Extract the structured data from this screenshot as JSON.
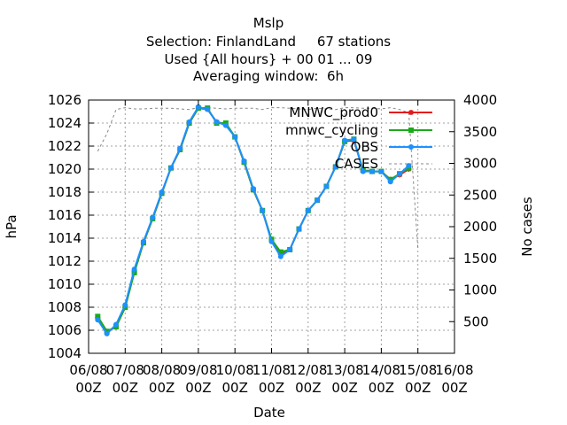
{
  "chart_data": {
    "type": "line",
    "title_lines": [
      "Mslp",
      "Selection: FinlandLand     67 stations",
      "Used {All hours} + 00 01 ... 09",
      "Averaging window:  6h"
    ],
    "xlabel": "Date",
    "ylabel": "hPa",
    "y2label": "No cases",
    "x_ticks": [
      {
        "day": 6,
        "line1": "06/08",
        "line2": "00Z"
      },
      {
        "day": 7,
        "line1": "07/08",
        "line2": "00Z"
      },
      {
        "day": 8,
        "line1": "08/08",
        "line2": "00Z"
      },
      {
        "day": 9,
        "line1": "09/08",
        "line2": "00Z"
      },
      {
        "day": 10,
        "line1": "10/08",
        "line2": "00Z"
      },
      {
        "day": 11,
        "line1": "11/08",
        "line2": "00Z"
      },
      {
        "day": 12,
        "line1": "12/08",
        "line2": "00Z"
      },
      {
        "day": 13,
        "line1": "13/08",
        "line2": "00Z"
      },
      {
        "day": 14,
        "line1": "14/08",
        "line2": "00Z"
      },
      {
        "day": 15,
        "line1": "15/08",
        "line2": "00Z"
      },
      {
        "day": 16,
        "line1": "16/08",
        "line2": "00Z"
      }
    ],
    "xlim": [
      6,
      16
    ],
    "ylim": [
      1004,
      1026
    ],
    "y_ticks": [
      1004,
      1006,
      1008,
      1010,
      1012,
      1014,
      1016,
      1018,
      1020,
      1022,
      1024,
      1026
    ],
    "y2lim": [
      0,
      4000
    ],
    "y2_ticks": [
      500,
      1000,
      1500,
      2000,
      2500,
      3000,
      3500,
      4000
    ],
    "grid": true,
    "legend_position": "top-right",
    "x": [
      6.25,
      6.5,
      6.75,
      7.0,
      7.25,
      7.5,
      7.75,
      8.0,
      8.25,
      8.5,
      8.75,
      9.0,
      9.25,
      9.5,
      9.75,
      10.0,
      10.25,
      10.5,
      10.75,
      11.0,
      11.25,
      11.5,
      11.75,
      12.0,
      12.25,
      12.5,
      12.75,
      13.0,
      13.25,
      13.5,
      13.75,
      14.0,
      14.25,
      14.5,
      14.75,
      15.0
    ],
    "series": [
      {
        "name": "MNWC_prod0",
        "color": "#e41a1c",
        "marker": "star",
        "axis": "left",
        "values": [
          1007.1,
          1005.9,
          1006.3,
          1008.0,
          1011.1,
          1013.6,
          1015.7,
          1017.9,
          1020.1,
          1021.7,
          1024.0,
          1025.3,
          1025.2,
          1024.1,
          1023.9,
          1022.8,
          1020.6,
          1018.2,
          1016.4,
          1013.8,
          1012.6,
          1013.0,
          1014.8,
          1016.4,
          1017.3,
          1018.5,
          1020.2,
          1022.4,
          1022.5,
          1019.9,
          1019.8,
          1019.8,
          1019.1,
          1019.5,
          1020.0,
          null
        ]
      },
      {
        "name": "mnwc_cycling",
        "color": "#1aaa1a",
        "marker": "square",
        "axis": "left",
        "values": [
          1007.2,
          1005.9,
          1006.3,
          1008.0,
          1011.0,
          1013.6,
          1015.7,
          1017.9,
          1020.1,
          1021.7,
          1024.0,
          1025.3,
          1025.3,
          1024.0,
          1024.0,
          1022.8,
          1020.6,
          1018.2,
          1016.4,
          1013.9,
          1012.8,
          1013.0,
          1014.8,
          1016.4,
          1017.3,
          1018.5,
          1020.2,
          1022.4,
          1022.6,
          1019.9,
          1019.8,
          1019.8,
          1019.1,
          1019.6,
          1020.1,
          null
        ]
      },
      {
        "name": "OBS",
        "color": "#1e90ff",
        "marker": "circle",
        "axis": "left",
        "values": [
          1006.9,
          1005.7,
          1006.5,
          1008.2,
          1011.3,
          1013.7,
          1015.8,
          1018.0,
          1020.1,
          1021.8,
          1024.1,
          1025.4,
          1025.2,
          1024.1,
          1023.8,
          1022.8,
          1020.7,
          1018.3,
          1016.4,
          1013.7,
          1012.4,
          1013.0,
          1014.8,
          1016.4,
          1017.3,
          1018.5,
          1020.2,
          1022.5,
          1022.6,
          1019.8,
          1019.8,
          1019.8,
          1018.9,
          1019.6,
          1020.3,
          null
        ]
      },
      {
        "name": "CASES",
        "color": "#888888",
        "marker": "none",
        "dash": true,
        "axis": "right",
        "values": [
          3190,
          3470,
          3850,
          3880,
          3860,
          3860,
          3870,
          3870,
          3870,
          3860,
          3850,
          3880,
          3880,
          3870,
          3860,
          3870,
          3870,
          3870,
          3850,
          3880,
          3880,
          3870,
          3860,
          3850,
          3870,
          3860,
          3850,
          3880,
          3880,
          3870,
          3870,
          3860,
          3880,
          3850,
          3800,
          1650
        ]
      }
    ]
  }
}
